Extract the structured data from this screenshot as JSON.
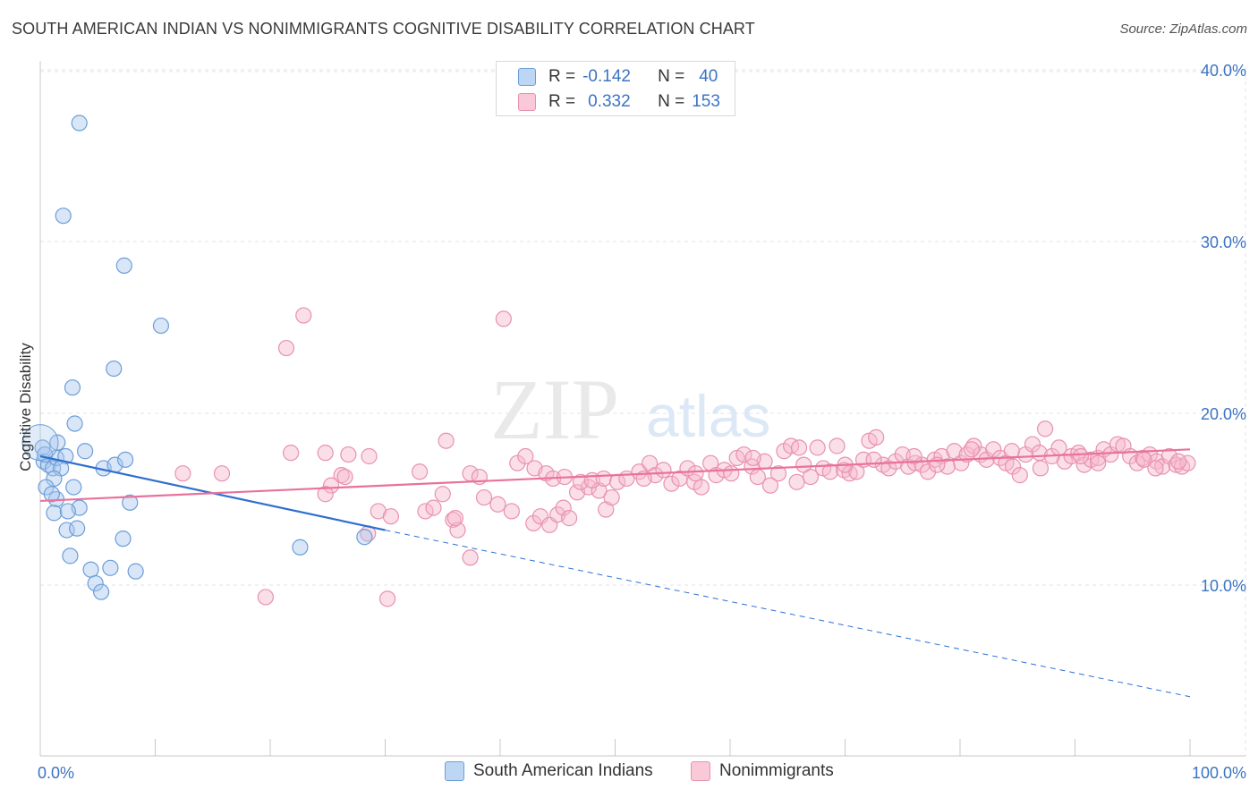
{
  "title": "SOUTH AMERICAN INDIAN VS NONIMMIGRANTS COGNITIVE DISABILITY CORRELATION CHART",
  "source": "Source: ZipAtlas.com",
  "watermark": {
    "zip": "ZIP",
    "atlas": "atlas"
  },
  "legend_top": {
    "rows": [
      {
        "r_label": "R =",
        "r_value": "-0.142",
        "n_label": "N =",
        "n_value": "40"
      },
      {
        "r_label": "R =",
        "r_value": "0.332",
        "n_label": "N =",
        "n_value": "153"
      }
    ]
  },
  "legend_bottom": {
    "series1": "South American Indians",
    "series2": "Nonimmigrants"
  },
  "colors": {
    "blue_fill": "#a9c8ef",
    "blue_stroke": "#6d9ed8",
    "blue_line": "#2f6fce",
    "pink_fill": "#f6b9cd",
    "pink_stroke": "#e891b0",
    "pink_line": "#e8729b",
    "grid": "#e3e3e3",
    "tick_label": "#3b73c4"
  },
  "chart_data": {
    "type": "scatter",
    "title": "SOUTH AMERICAN INDIAN VS NONIMMIGRANTS COGNITIVE DISABILITY CORRELATION CHART",
    "xlabel": "",
    "ylabel": "Cognitive Disability",
    "xlim": [
      0,
      100
    ],
    "ylim": [
      0,
      42
    ],
    "x_tick_labels": [
      "0.0%",
      "100.0%"
    ],
    "y_ticks": [
      10,
      20,
      30,
      40
    ],
    "y_tick_labels": [
      "10.0%",
      "20.0%",
      "30.0%",
      "40.0%"
    ],
    "grid": true,
    "legend_position": "bottom",
    "series": [
      {
        "name": "South American Indians",
        "r": -0.142,
        "n": 40,
        "trend": {
          "x0": 0,
          "y0": 17.5,
          "x1": 30,
          "y1": 13.2,
          "dash_to_x": 100,
          "dash_to_y": 3.5
        },
        "points": [
          [
            3.4,
            36.9
          ],
          [
            2.0,
            31.5
          ],
          [
            7.3,
            28.6
          ],
          [
            10.5,
            25.1
          ],
          [
            6.4,
            22.6
          ],
          [
            2.8,
            21.5
          ],
          [
            3.0,
            19.4
          ],
          [
            1.5,
            18.3
          ],
          [
            3.9,
            17.8
          ],
          [
            0.3,
            17.2
          ],
          [
            0.7,
            17.0
          ],
          [
            1.1,
            16.8
          ],
          [
            1.4,
            17.4
          ],
          [
            2.2,
            17.5
          ],
          [
            5.5,
            16.8
          ],
          [
            6.5,
            17.0
          ],
          [
            7.4,
            17.3
          ],
          [
            1.8,
            16.8
          ],
          [
            1.2,
            16.2
          ],
          [
            0.5,
            15.7
          ],
          [
            2.9,
            15.7
          ],
          [
            1.4,
            15.0
          ],
          [
            1.0,
            15.3
          ],
          [
            7.8,
            14.8
          ],
          [
            3.4,
            14.5
          ],
          [
            1.2,
            14.2
          ],
          [
            2.4,
            14.3
          ],
          [
            2.3,
            13.2
          ],
          [
            3.2,
            13.3
          ],
          [
            7.2,
            12.7
          ],
          [
            28.2,
            12.8
          ],
          [
            22.6,
            12.2
          ],
          [
            2.6,
            11.7
          ],
          [
            6.1,
            11.0
          ],
          [
            4.4,
            10.9
          ],
          [
            8.3,
            10.8
          ],
          [
            4.8,
            10.1
          ],
          [
            5.3,
            9.6
          ],
          [
            0.2,
            18.0
          ],
          [
            0.4,
            17.6
          ]
        ]
      },
      {
        "name": "Nonimmigrants",
        "r": 0.332,
        "n": 153,
        "trend": {
          "x0": 0,
          "y0": 14.9,
          "x1": 100,
          "y1": 17.9
        },
        "points": [
          [
            22.9,
            25.7
          ],
          [
            21.4,
            23.8
          ],
          [
            40.3,
            25.5
          ],
          [
            35.3,
            18.4
          ],
          [
            21.8,
            17.7
          ],
          [
            24.8,
            17.7
          ],
          [
            26.8,
            17.6
          ],
          [
            28.6,
            17.5
          ],
          [
            33.0,
            16.6
          ],
          [
            37.4,
            16.5
          ],
          [
            12.4,
            16.5
          ],
          [
            15.8,
            16.5
          ],
          [
            26.2,
            16.4
          ],
          [
            26.5,
            16.3
          ],
          [
            38.2,
            16.3
          ],
          [
            29.4,
            14.3
          ],
          [
            25.3,
            15.8
          ],
          [
            24.8,
            15.3
          ],
          [
            30.5,
            14.0
          ],
          [
            33.5,
            14.3
          ],
          [
            34.2,
            14.5
          ],
          [
            35.0,
            15.3
          ],
          [
            35.9,
            13.8
          ],
          [
            36.3,
            13.2
          ],
          [
            36.1,
            13.9
          ],
          [
            38.6,
            15.1
          ],
          [
            39.8,
            14.7
          ],
          [
            41.0,
            14.3
          ],
          [
            42.9,
            13.6
          ],
          [
            43.5,
            14.0
          ],
          [
            44.3,
            13.5
          ],
          [
            45.0,
            14.1
          ],
          [
            45.5,
            14.5
          ],
          [
            46.0,
            13.9
          ],
          [
            46.7,
            15.4
          ],
          [
            47.7,
            15.7
          ],
          [
            48.6,
            15.5
          ],
          [
            49.2,
            14.4
          ],
          [
            49.7,
            15.1
          ],
          [
            37.4,
            11.6
          ],
          [
            19.6,
            9.3
          ],
          [
            30.2,
            9.2
          ],
          [
            41.5,
            17.1
          ],
          [
            42.2,
            17.5
          ],
          [
            43.0,
            16.8
          ],
          [
            44.0,
            16.5
          ],
          [
            44.6,
            16.2
          ],
          [
            45.6,
            16.3
          ],
          [
            47.0,
            16.0
          ],
          [
            48.0,
            16.1
          ],
          [
            49.0,
            16.2
          ],
          [
            50.2,
            16.0
          ],
          [
            51.0,
            16.2
          ],
          [
            52.1,
            16.6
          ],
          [
            53.0,
            17.1
          ],
          [
            53.5,
            16.4
          ],
          [
            54.2,
            16.7
          ],
          [
            54.9,
            15.9
          ],
          [
            55.6,
            16.2
          ],
          [
            56.3,
            16.8
          ],
          [
            56.9,
            16.0
          ],
          [
            57.5,
            15.7
          ],
          [
            58.3,
            17.1
          ],
          [
            58.8,
            16.4
          ],
          [
            59.5,
            16.7
          ],
          [
            60.1,
            16.5
          ],
          [
            60.6,
            17.4
          ],
          [
            61.2,
            17.6
          ],
          [
            61.9,
            16.9
          ],
          [
            62.4,
            16.3
          ],
          [
            63.0,
            17.2
          ],
          [
            63.5,
            15.8
          ],
          [
            64.2,
            16.5
          ],
          [
            64.7,
            17.8
          ],
          [
            65.3,
            18.1
          ],
          [
            65.8,
            16.0
          ],
          [
            66.4,
            17.0
          ],
          [
            67.0,
            16.3
          ],
          [
            67.6,
            18.0
          ],
          [
            68.1,
            16.8
          ],
          [
            68.7,
            16.6
          ],
          [
            69.3,
            18.1
          ],
          [
            69.9,
            16.7
          ],
          [
            70.4,
            16.5
          ],
          [
            71.0,
            16.6
          ],
          [
            71.6,
            17.3
          ],
          [
            72.1,
            18.4
          ],
          [
            72.7,
            18.6
          ],
          [
            73.3,
            17.0
          ],
          [
            73.8,
            16.8
          ],
          [
            74.4,
            17.2
          ],
          [
            75.0,
            17.6
          ],
          [
            75.5,
            16.9
          ],
          [
            76.1,
            17.1
          ],
          [
            76.7,
            17.0
          ],
          [
            77.2,
            16.6
          ],
          [
            77.8,
            17.3
          ],
          [
            78.4,
            17.5
          ],
          [
            78.9,
            16.9
          ],
          [
            79.5,
            17.8
          ],
          [
            80.1,
            17.1
          ],
          [
            80.6,
            17.6
          ],
          [
            81.2,
            18.1
          ],
          [
            81.8,
            17.6
          ],
          [
            82.3,
            17.3
          ],
          [
            82.9,
            17.9
          ],
          [
            83.5,
            17.4
          ],
          [
            84.0,
            17.1
          ],
          [
            84.6,
            16.9
          ],
          [
            85.2,
            16.4
          ],
          [
            85.7,
            17.6
          ],
          [
            86.3,
            18.2
          ],
          [
            86.9,
            17.7
          ],
          [
            87.4,
            19.1
          ],
          [
            88.0,
            17.5
          ],
          [
            88.6,
            18.0
          ],
          [
            89.1,
            17.2
          ],
          [
            89.7,
            17.5
          ],
          [
            90.3,
            17.7
          ],
          [
            90.8,
            17.0
          ],
          [
            91.4,
            17.3
          ],
          [
            92.0,
            17.4
          ],
          [
            92.5,
            17.9
          ],
          [
            93.1,
            17.6
          ],
          [
            93.7,
            18.2
          ],
          [
            94.2,
            18.1
          ],
          [
            94.8,
            17.5
          ],
          [
            95.4,
            17.1
          ],
          [
            95.9,
            17.4
          ],
          [
            96.5,
            17.6
          ],
          [
            97.1,
            17.2
          ],
          [
            97.6,
            16.9
          ],
          [
            98.2,
            17.5
          ],
          [
            98.8,
            17.0
          ],
          [
            99.3,
            16.9
          ],
          [
            99.8,
            17.1
          ],
          [
            62.0,
            17.4
          ],
          [
            70.0,
            17.0
          ],
          [
            76.0,
            17.5
          ],
          [
            81.0,
            17.9
          ],
          [
            87.0,
            16.8
          ],
          [
            92.0,
            17.1
          ],
          [
            97.0,
            16.8
          ],
          [
            57.0,
            16.5
          ],
          [
            52.5,
            16.2
          ],
          [
            66.0,
            18.0
          ],
          [
            72.5,
            17.3
          ],
          [
            78.0,
            17.0
          ],
          [
            84.5,
            17.8
          ],
          [
            90.5,
            17.5
          ],
          [
            96.0,
            17.3
          ],
          [
            99.0,
            17.2
          ],
          [
            28.5,
            13.0
          ]
        ]
      }
    ]
  }
}
